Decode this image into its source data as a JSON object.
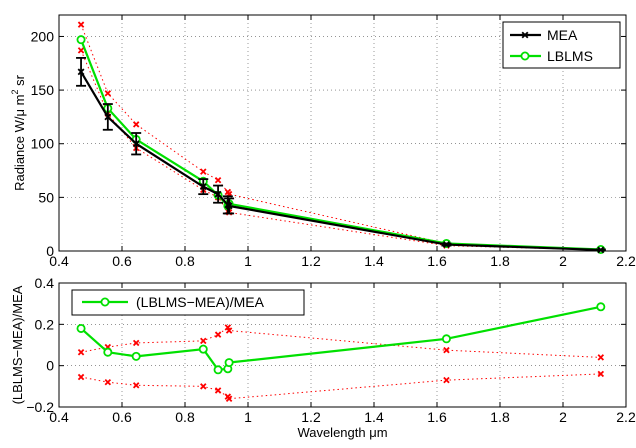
{
  "chart_data": [
    {
      "type": "line",
      "xlabel": "",
      "ylabel_parts": [
        "Radiance W/",
        "μ",
        "m m",
        "2",
        " sr"
      ],
      "xlim": [
        0.4,
        2.2
      ],
      "ylim": [
        0,
        220
      ],
      "xticks": [
        "0.4",
        "0.6",
        "0.8",
        "1",
        "1.2",
        "1.4",
        "1.6",
        "1.8",
        "2",
        "2.2"
      ],
      "xtick_values": [
        0.4,
        0.6,
        0.8,
        1.0,
        1.2,
        1.4,
        1.6,
        1.8,
        2.0,
        2.2
      ],
      "yticks": [
        "0",
        "50",
        "100",
        "150",
        "200"
      ],
      "ytick_values": [
        0,
        50,
        100,
        150,
        200
      ],
      "grid": true,
      "legend": "top-right",
      "series": [
        {
          "name": "MEA",
          "color": "#000000",
          "marker": "x",
          "x": [
            0.47,
            0.555,
            0.645,
            0.858,
            0.905,
            0.936,
            0.94,
            1.63,
            2.12
          ],
          "y": [
            167,
            125,
            100,
            60,
            53,
            43,
            42,
            6,
            1
          ],
          "err": [
            13,
            12,
            10,
            7,
            8,
            8,
            7,
            1,
            0.5
          ]
        },
        {
          "name": "LBLMS",
          "color": "#00e000",
          "marker": "o",
          "x": [
            0.47,
            0.555,
            0.645,
            0.858,
            0.905,
            0.936,
            0.94,
            1.63,
            2.12
          ],
          "y": [
            197,
            133,
            104,
            65,
            52,
            42,
            44,
            7,
            1.4
          ]
        }
      ],
      "bounds": {
        "color": "#ff0000",
        "x": [
          0.47,
          0.555,
          0.645,
          0.858,
          0.905,
          0.936,
          0.94,
          1.63,
          2.12
        ],
        "upper": [
          211,
          147,
          118,
          74,
          66,
          55,
          53,
          7,
          1.6
        ],
        "lower": [
          187,
          128,
          96,
          57,
          50,
          37,
          36,
          5,
          1
        ]
      }
    },
    {
      "type": "line",
      "xlabel": "Wavelength μm",
      "ylabel": "(LBLMS−MEA)/MEA",
      "xlim": [
        0.4,
        2.2
      ],
      "ylim": [
        -0.2,
        0.4
      ],
      "xticks": [
        "0.4",
        "0.6",
        "0.8",
        "1",
        "1.2",
        "1.4",
        "1.6",
        "1.8",
        "2",
        "2.2"
      ],
      "xtick_values": [
        0.4,
        0.6,
        0.8,
        1.0,
        1.2,
        1.4,
        1.6,
        1.8,
        2.0,
        2.2
      ],
      "yticks": [
        "−0.2",
        "0",
        "0.2",
        "0.4"
      ],
      "ytick_values": [
        -0.2,
        0,
        0.2,
        0.4
      ],
      "grid": true,
      "legend": "top-left",
      "series": [
        {
          "name": "(LBLMS−MEA)/MEA",
          "color": "#00e000",
          "marker": "o",
          "x": [
            0.47,
            0.555,
            0.645,
            0.858,
            0.905,
            0.936,
            0.94,
            1.63,
            2.12
          ],
          "y": [
            0.18,
            0.065,
            0.045,
            0.08,
            -0.02,
            -0.015,
            0.015,
            0.13,
            0.285
          ]
        }
      ],
      "bounds": {
        "color": "#ff0000",
        "x": [
          0.47,
          0.555,
          0.645,
          0.858,
          0.905,
          0.936,
          0.94,
          1.63,
          2.12
        ],
        "upper": [
          0.065,
          0.09,
          0.11,
          0.12,
          0.15,
          0.185,
          0.17,
          0.075,
          0.04
        ],
        "lower": [
          -0.055,
          -0.08,
          -0.095,
          -0.1,
          -0.12,
          -0.15,
          -0.16,
          -0.07,
          -0.04
        ]
      }
    }
  ]
}
